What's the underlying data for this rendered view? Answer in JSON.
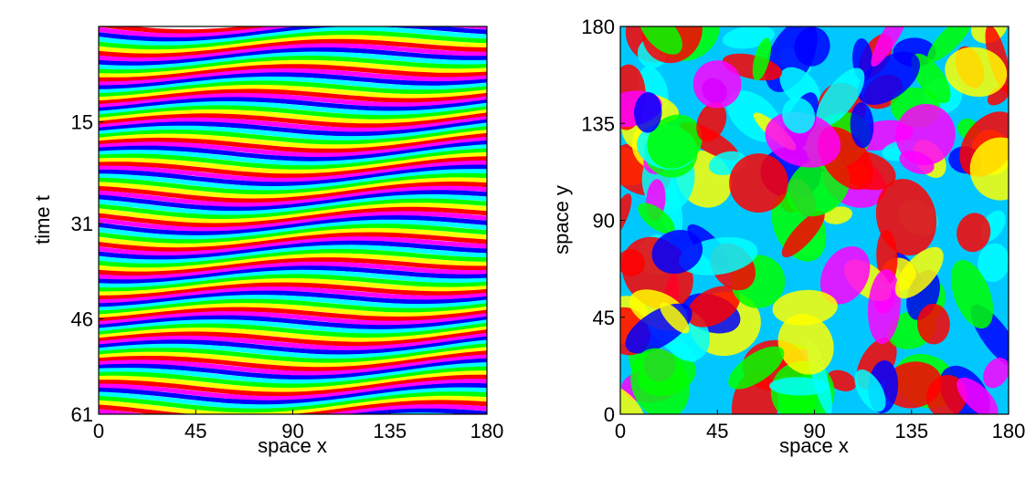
{
  "chart_data": [
    {
      "type": "heatmap",
      "description_kind": "space-time phase plot",
      "xlabel": "space x",
      "ylabel": "time t",
      "xlim": [
        0,
        180
      ],
      "ylim": [
        61,
        0
      ],
      "x_ticks": [
        0,
        45,
        90,
        135,
        180
      ],
      "y_ticks": [
        15,
        31,
        46,
        61
      ],
      "y_tick_labels": [
        "15",
        "31",
        "46",
        "61"
      ],
      "x_tick_labels": [
        "0",
        "45",
        "90",
        "135",
        "180"
      ],
      "colormap": "hsv",
      "grid": false
    },
    {
      "type": "heatmap",
      "description_kind": "spatial phase plot",
      "xlabel": "space x",
      "ylabel": "space y",
      "xlim": [
        0,
        180
      ],
      "ylim": [
        0,
        180
      ],
      "x_ticks": [
        0,
        45,
        90,
        135,
        180
      ],
      "y_ticks": [
        0,
        45,
        90,
        135,
        180
      ],
      "x_tick_labels": [
        "0",
        "45",
        "90",
        "135",
        "180"
      ],
      "y_tick_labels": [
        "0",
        "45",
        "90",
        "135",
        "180"
      ],
      "colormap": "hsv",
      "grid": false
    }
  ]
}
